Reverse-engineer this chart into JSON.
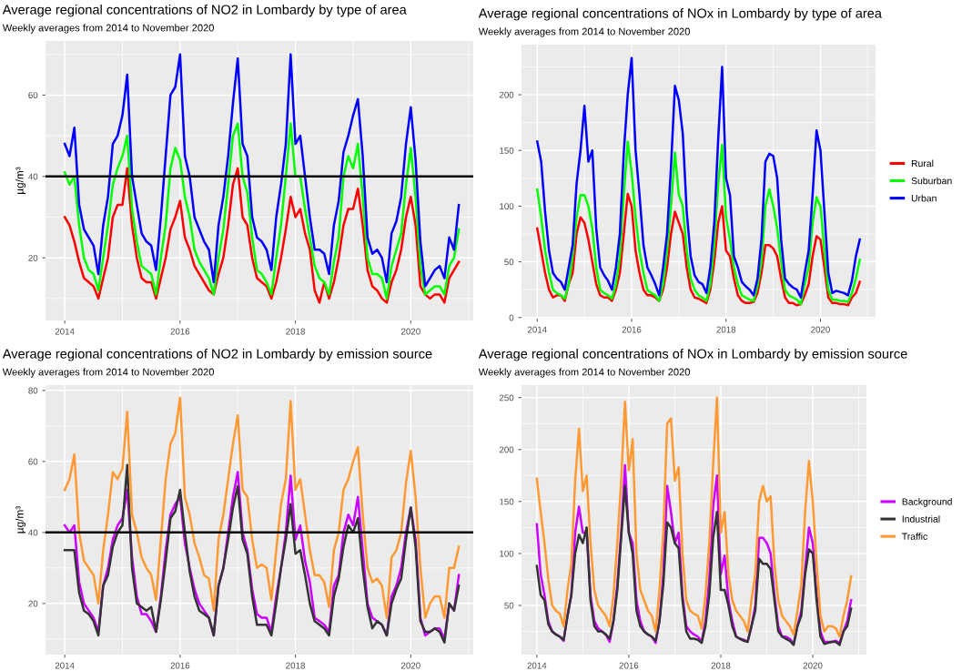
{
  "chart_data": [
    {
      "type": "line",
      "title": "Average regional concentrations of NO2 in Lombardy by type of area",
      "subtitle": "Weekly averages from 2014 to November 2020",
      "ylabel": "µg/m³",
      "x": [
        "2014-01",
        "2014-02",
        "2014-03",
        "2014-04",
        "2014-05",
        "2014-06",
        "2014-07",
        "2014-08",
        "2014-09",
        "2014-10",
        "2014-11",
        "2014-12",
        "2015-01",
        "2015-02",
        "2015-03",
        "2015-04",
        "2015-05",
        "2015-06",
        "2015-07",
        "2015-08",
        "2015-09",
        "2015-10",
        "2015-11",
        "2015-12",
        "2016-01",
        "2016-02",
        "2016-03",
        "2016-04",
        "2016-05",
        "2016-06",
        "2016-07",
        "2016-08",
        "2016-09",
        "2016-10",
        "2016-11",
        "2016-12",
        "2017-01",
        "2017-02",
        "2017-03",
        "2017-04",
        "2017-05",
        "2017-06",
        "2017-07",
        "2017-08",
        "2017-09",
        "2017-10",
        "2017-11",
        "2017-12",
        "2018-01",
        "2018-02",
        "2018-03",
        "2018-04",
        "2018-05",
        "2018-06",
        "2018-07",
        "2018-08",
        "2018-09",
        "2018-10",
        "2018-11",
        "2018-12",
        "2019-01",
        "2019-02",
        "2019-03",
        "2019-04",
        "2019-05",
        "2019-06",
        "2019-07",
        "2019-08",
        "2019-09",
        "2019-10",
        "2019-11",
        "2019-12",
        "2020-01",
        "2020-02",
        "2020-03",
        "2020-04",
        "2020-05",
        "2020-06",
        "2020-07",
        "2020-08",
        "2020-09",
        "2020-10",
        "2020-11"
      ],
      "series": [
        {
          "color": "#ff0000",
          "values": [
            30,
            28,
            24,
            19,
            15,
            14,
            13,
            10,
            15,
            20,
            30,
            33,
            33,
            42,
            28,
            20,
            15,
            14,
            14,
            10,
            15,
            20,
            27,
            30,
            34,
            25,
            22,
            18,
            16,
            14,
            12,
            11,
            16,
            20,
            28,
            38,
            42,
            30,
            28,
            20,
            15,
            14,
            13,
            10,
            14,
            20,
            27,
            35,
            30,
            32,
            26,
            22,
            12,
            9,
            14,
            10,
            14,
            20,
            28,
            32,
            32,
            37,
            28,
            17,
            13,
            12,
            10,
            9,
            14,
            17,
            22,
            30,
            35,
            28,
            13,
            11,
            10,
            11,
            11,
            9,
            15,
            17,
            19
          ]
        },
        {
          "color": "#00ff00",
          "values": [
            41,
            38,
            40,
            28,
            20,
            17,
            16,
            12,
            20,
            28,
            38,
            42,
            45,
            50,
            32,
            24,
            18,
            17,
            16,
            11,
            20,
            28,
            42,
            47,
            44,
            35,
            30,
            22,
            19,
            17,
            15,
            11,
            20,
            27,
            38,
            50,
            53,
            40,
            36,
            25,
            17,
            16,
            14,
            11,
            20,
            28,
            40,
            53,
            40,
            40,
            32,
            25,
            18,
            15,
            14,
            11,
            19,
            25,
            40,
            45,
            42,
            48,
            35,
            20,
            16,
            16,
            15,
            10,
            18,
            22,
            26,
            38,
            47,
            35,
            18,
            11,
            12,
            13,
            13,
            11,
            18,
            20,
            27
          ]
        },
        {
          "color": "#0000ff",
          "values": [
            48,
            45,
            52,
            33,
            27,
            25,
            23,
            16,
            28,
            35,
            48,
            50,
            55,
            65,
            40,
            33,
            26,
            24,
            23,
            17,
            30,
            45,
            60,
            62,
            70,
            45,
            40,
            30,
            27,
            24,
            22,
            14,
            28,
            35,
            45,
            58,
            69,
            48,
            45,
            30,
            25,
            24,
            22,
            17,
            30,
            38,
            48,
            70,
            48,
            50,
            40,
            30,
            22,
            22,
            21,
            16,
            28,
            34,
            46,
            50,
            55,
            59,
            45,
            25,
            21,
            22,
            20,
            14,
            26,
            29,
            35,
            48,
            57,
            44,
            24,
            13,
            15,
            17,
            18,
            15,
            25,
            22,
            33
          ]
        }
      ],
      "xlim": [
        "2013-09",
        "2021-02"
      ],
      "xticks": [
        "2014",
        "2016",
        "2018",
        "2020"
      ],
      "ylim": [
        4.6,
        73.3
      ],
      "yticks": [
        20,
        40,
        60
      ],
      "grid": true,
      "ref_lines": [
        {
          "axis": "y",
          "value": 40,
          "color": "#000000"
        }
      ]
    },
    {
      "type": "line",
      "title": "Average regional concentrations of NOx in Lombardy by type of area",
      "subtitle": "Weekly averages from 2014 to November 2020",
      "x": [
        "2014-01",
        "2014-02",
        "2014-03",
        "2014-04",
        "2014-05",
        "2014-06",
        "2014-07",
        "2014-08",
        "2014-09",
        "2014-10",
        "2014-11",
        "2014-12",
        "2015-01",
        "2015-02",
        "2015-03",
        "2015-04",
        "2015-05",
        "2015-06",
        "2015-07",
        "2015-08",
        "2015-09",
        "2015-10",
        "2015-11",
        "2015-12",
        "2016-01",
        "2016-02",
        "2016-03",
        "2016-04",
        "2016-05",
        "2016-06",
        "2016-07",
        "2016-08",
        "2016-09",
        "2016-10",
        "2016-11",
        "2016-12",
        "2017-01",
        "2017-02",
        "2017-03",
        "2017-04",
        "2017-05",
        "2017-06",
        "2017-07",
        "2017-08",
        "2017-09",
        "2017-10",
        "2017-11",
        "2017-12",
        "2018-01",
        "2018-02",
        "2018-03",
        "2018-04",
        "2018-05",
        "2018-06",
        "2018-07",
        "2018-08",
        "2018-09",
        "2018-10",
        "2018-11",
        "2018-12",
        "2019-01",
        "2019-02",
        "2019-03",
        "2019-04",
        "2019-05",
        "2019-06",
        "2019-07",
        "2019-08",
        "2019-09",
        "2019-10",
        "2019-11",
        "2019-12",
        "2020-01",
        "2020-02",
        "2020-03",
        "2020-04",
        "2020-05",
        "2020-06",
        "2020-07",
        "2020-08",
        "2020-09",
        "2020-10",
        "2020-11"
      ],
      "series": [
        {
          "name": "Rural",
          "color": "#ff0000",
          "values": [
            80,
            60,
            40,
            25,
            18,
            20,
            20,
            15,
            30,
            40,
            75,
            90,
            85,
            70,
            50,
            30,
            20,
            18,
            18,
            15,
            25,
            40,
            75,
            111,
            100,
            60,
            40,
            25,
            20,
            20,
            18,
            15,
            25,
            45,
            75,
            95,
            85,
            75,
            45,
            25,
            18,
            17,
            15,
            13,
            25,
            50,
            85,
            100,
            60,
            55,
            35,
            20,
            15,
            13,
            13,
            14,
            22,
            40,
            65,
            65,
            62,
            55,
            35,
            18,
            13,
            13,
            11,
            12,
            20,
            30,
            55,
            73,
            70,
            45,
            18,
            13,
            13,
            12,
            12,
            11,
            18,
            22,
            32
          ]
        },
        {
          "name": "Suburban",
          "color": "#00ff00",
          "values": [
            115,
            90,
            60,
            40,
            25,
            22,
            20,
            17,
            30,
            55,
            90,
            110,
            110,
            100,
            80,
            45,
            25,
            22,
            20,
            17,
            30,
            55,
            110,
            158,
            130,
            90,
            60,
            40,
            25,
            22,
            20,
            15,
            30,
            60,
            100,
            148,
            110,
            100,
            60,
            35,
            25,
            20,
            18,
            15,
            30,
            65,
            120,
            155,
            90,
            70,
            45,
            30,
            20,
            18,
            16,
            15,
            28,
            50,
            100,
            115,
            100,
            80,
            50,
            25,
            20,
            18,
            16,
            12,
            30,
            45,
            85,
            108,
            100,
            60,
            25,
            16,
            16,
            15,
            15,
            14,
            22,
            35,
            52
          ]
        },
        {
          "name": "Urban",
          "color": "#0000ff",
          "values": [
            158,
            140,
            95,
            60,
            40,
            35,
            32,
            25,
            45,
            65,
            120,
            150,
            190,
            140,
            150,
            80,
            45,
            38,
            33,
            25,
            45,
            75,
            148,
            200,
            233,
            150,
            110,
            65,
            45,
            38,
            30,
            20,
            45,
            75,
            135,
            208,
            195,
            165,
            95,
            55,
            38,
            32,
            30,
            22,
            45,
            85,
            160,
            225,
            125,
            110,
            55,
            45,
            32,
            28,
            25,
            20,
            35,
            70,
            140,
            147,
            145,
            125,
            70,
            35,
            30,
            27,
            25,
            18,
            40,
            60,
            110,
            168,
            150,
            95,
            40,
            22,
            24,
            23,
            22,
            20,
            33,
            55,
            70
          ]
        }
      ],
      "xlim": [
        "2013-09",
        "2021-03"
      ],
      "xticks": [
        "2014",
        "2016",
        "2018",
        "2020"
      ],
      "ylim": [
        -1,
        245
      ],
      "yticks": [
        0,
        50,
        100,
        150,
        200
      ],
      "grid": true,
      "legend": "right"
    },
    {
      "type": "line",
      "title": "Average regional concentrations of NO2 in Lombardy by emission source",
      "subtitle": "Weekly averages from 2014 to November 2020",
      "ylabel": "µg/m³",
      "x": [
        "2014-01",
        "2014-02",
        "2014-03",
        "2014-04",
        "2014-05",
        "2014-06",
        "2014-07",
        "2014-08",
        "2014-09",
        "2014-10",
        "2014-11",
        "2014-12",
        "2015-01",
        "2015-02",
        "2015-03",
        "2015-04",
        "2015-05",
        "2015-06",
        "2015-07",
        "2015-08",
        "2015-09",
        "2015-10",
        "2015-11",
        "2015-12",
        "2016-01",
        "2016-02",
        "2016-03",
        "2016-04",
        "2016-05",
        "2016-06",
        "2016-07",
        "2016-08",
        "2016-09",
        "2016-10",
        "2016-11",
        "2016-12",
        "2017-01",
        "2017-02",
        "2017-03",
        "2017-04",
        "2017-05",
        "2017-06",
        "2017-07",
        "2017-08",
        "2017-09",
        "2017-10",
        "2017-11",
        "2017-12",
        "2018-01",
        "2018-02",
        "2018-03",
        "2018-04",
        "2018-05",
        "2018-06",
        "2018-07",
        "2018-08",
        "2018-09",
        "2018-10",
        "2018-11",
        "2018-12",
        "2019-01",
        "2019-02",
        "2019-03",
        "2019-04",
        "2019-05",
        "2019-06",
        "2019-07",
        "2019-08",
        "2019-09",
        "2019-10",
        "2019-11",
        "2019-12",
        "2020-01",
        "2020-02",
        "2020-03",
        "2020-04",
        "2020-05",
        "2020-06",
        "2020-07",
        "2020-08",
        "2020-09",
        "2020-10",
        "2020-11"
      ],
      "series": [
        {
          "color": "#cc00ff",
          "values": [
            42,
            40,
            42,
            26,
            20,
            18,
            16,
            12,
            25,
            30,
            38,
            42,
            44,
            52,
            33,
            22,
            17,
            17,
            15,
            12,
            22,
            35,
            45,
            48,
            50,
            37,
            30,
            24,
            20,
            18,
            16,
            11,
            25,
            30,
            40,
            50,
            57,
            40,
            35,
            24,
            17,
            16,
            16,
            12,
            22,
            30,
            40,
            56,
            38,
            42,
            32,
            26,
            16,
            15,
            14,
            12,
            25,
            28,
            40,
            45,
            42,
            50,
            35,
            20,
            16,
            15,
            14,
            11,
            22,
            25,
            30,
            40,
            47,
            38,
            16,
            11,
            12,
            13,
            13,
            10,
            20,
            18,
            28
          ]
        },
        {
          "color": "#333333",
          "values": [
            35,
            35,
            35,
            23,
            18,
            17,
            15,
            11,
            25,
            28,
            36,
            40,
            42,
            59,
            30,
            20,
            19,
            18,
            19,
            12,
            21,
            32,
            44,
            46,
            52,
            40,
            29,
            22,
            18,
            17,
            16,
            11,
            25,
            30,
            38,
            47,
            53,
            38,
            34,
            22,
            14,
            14,
            14,
            11,
            20,
            30,
            38,
            48,
            34,
            35,
            28,
            20,
            15,
            14,
            13,
            11,
            22,
            27,
            36,
            42,
            40,
            44,
            30,
            19,
            13,
            15,
            14,
            11,
            20,
            24,
            27,
            38,
            47,
            36,
            15,
            12,
            12,
            13,
            12,
            9,
            20,
            18,
            25
          ]
        },
        {
          "color": "#ff9933",
          "values": [
            52,
            55,
            62,
            40,
            32,
            30,
            28,
            20,
            35,
            45,
            57,
            55,
            58,
            74,
            45,
            40,
            33,
            30,
            28,
            21,
            38,
            55,
            65,
            68,
            78,
            50,
            45,
            37,
            33,
            28,
            27,
            18,
            38,
            45,
            55,
            65,
            73,
            52,
            50,
            38,
            30,
            31,
            30,
            21,
            35,
            48,
            55,
            77,
            52,
            55,
            45,
            35,
            28,
            28,
            26,
            19,
            35,
            40,
            52,
            55,
            60,
            64,
            45,
            30,
            26,
            27,
            25,
            16,
            33,
            35,
            40,
            54,
            63,
            50,
            30,
            16,
            20,
            22,
            22,
            16,
            30,
            30,
            36
          ]
        }
      ],
      "xlim": [
        "2013-09",
        "2021-02"
      ],
      "xticks": [
        "2014",
        "2016",
        "2018",
        "2020"
      ],
      "ylim": [
        5.6,
        81.5
      ],
      "yticks": [
        20,
        40,
        60,
        80
      ],
      "grid": true,
      "ref_lines": [
        {
          "axis": "y",
          "value": 40,
          "color": "#000000"
        }
      ]
    },
    {
      "type": "line",
      "title": "Average regional concentrations of NOx in Lombardy by emission source",
      "subtitle": "Weekly averages from 2014 to November 2020",
      "x": [
        "2014-01",
        "2014-02",
        "2014-03",
        "2014-04",
        "2014-05",
        "2014-06",
        "2014-07",
        "2014-08",
        "2014-09",
        "2014-10",
        "2014-11",
        "2014-12",
        "2015-01",
        "2015-02",
        "2015-03",
        "2015-04",
        "2015-05",
        "2015-06",
        "2015-07",
        "2015-08",
        "2015-09",
        "2015-10",
        "2015-11",
        "2015-12",
        "2016-01",
        "2016-02",
        "2016-03",
        "2016-04",
        "2016-05",
        "2016-06",
        "2016-07",
        "2016-08",
        "2016-09",
        "2016-10",
        "2016-11",
        "2016-12",
        "2017-01",
        "2017-02",
        "2017-03",
        "2017-04",
        "2017-05",
        "2017-06",
        "2017-07",
        "2017-08",
        "2017-09",
        "2017-10",
        "2017-11",
        "2017-12",
        "2018-01",
        "2018-02",
        "2018-03",
        "2018-04",
        "2018-05",
        "2018-06",
        "2018-07",
        "2018-08",
        "2018-09",
        "2018-10",
        "2018-11",
        "2018-12",
        "2019-01",
        "2019-02",
        "2019-03",
        "2019-04",
        "2019-05",
        "2019-06",
        "2019-07",
        "2019-08",
        "2019-09",
        "2019-10",
        "2019-11",
        "2019-12",
        "2020-01",
        "2020-02",
        "2020-03",
        "2020-04",
        "2020-05",
        "2020-06",
        "2020-07",
        "2020-08",
        "2020-09",
        "2020-10",
        "2020-11"
      ],
      "series": [
        {
          "name": "Background",
          "color": "#cc00ff",
          "values": [
            128,
            80,
            60,
            35,
            25,
            22,
            20,
            16,
            40,
            60,
            120,
            145,
            120,
            120,
            60,
            35,
            28,
            25,
            22,
            15,
            35,
            70,
            120,
            185,
            120,
            110,
            55,
            35,
            25,
            22,
            20,
            14,
            35,
            80,
            165,
            140,
            110,
            120,
            60,
            30,
            25,
            22,
            20,
            15,
            35,
            75,
            145,
            175,
            80,
            98,
            55,
            35,
            20,
            18,
            17,
            15,
            30,
            50,
            115,
            115,
            110,
            100,
            60,
            30,
            20,
            20,
            18,
            13,
            30,
            45,
            85,
            125,
            110,
            60,
            25,
            15,
            15,
            15,
            16,
            14,
            25,
            35,
            55
          ]
        },
        {
          "name": "Industrial",
          "color": "#333333",
          "values": [
            88,
            60,
            55,
            32,
            25,
            22,
            20,
            17,
            40,
            60,
            100,
            118,
            110,
            125,
            55,
            30,
            25,
            25,
            22,
            18,
            35,
            65,
            115,
            165,
            120,
            100,
            45,
            30,
            25,
            22,
            20,
            16,
            35,
            70,
            130,
            125,
            110,
            105,
            55,
            25,
            18,
            18,
            17,
            14,
            30,
            60,
            115,
            140,
            65,
            65,
            50,
            30,
            20,
            18,
            16,
            15,
            30,
            45,
            95,
            90,
            90,
            85,
            55,
            25,
            20,
            18,
            16,
            12,
            30,
            40,
            80,
            104,
            100,
            55,
            20,
            13,
            14,
            15,
            15,
            12,
            25,
            30,
            47
          ]
        },
        {
          "name": "Traffic",
          "color": "#ff9933",
          "values": [
            172,
            140,
            110,
            75,
            50,
            45,
            42,
            30,
            65,
            90,
            170,
            220,
            160,
            175,
            110,
            65,
            50,
            45,
            40,
            30,
            60,
            110,
            170,
            246,
            180,
            210,
            100,
            65,
            55,
            45,
            40,
            25,
            65,
            120,
            225,
            230,
            170,
            183,
            100,
            55,
            45,
            42,
            40,
            28,
            60,
            110,
            185,
            250,
            120,
            140,
            80,
            55,
            45,
            40,
            35,
            25,
            55,
            80,
            150,
            165,
            150,
            155,
            90,
            55,
            40,
            35,
            30,
            22,
            45,
            70,
            140,
            189,
            150,
            90,
            40,
            25,
            30,
            30,
            28,
            20,
            40,
            55,
            78
          ]
        }
      ],
      "xlim": [
        "2013-09",
        "2021-03"
      ],
      "xticks": [
        "2014",
        "2016",
        "2018",
        "2020"
      ],
      "ylim": [
        2.7,
        262
      ],
      "yticks": [
        50,
        100,
        150,
        200,
        250
      ],
      "grid": true,
      "legend": "right"
    }
  ]
}
